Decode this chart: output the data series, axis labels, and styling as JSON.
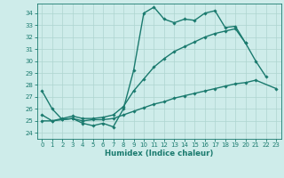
{
  "xlabel": "Humidex (Indice chaleur)",
  "x_values": [
    0,
    1,
    2,
    3,
    4,
    5,
    6,
    7,
    8,
    9,
    10,
    11,
    12,
    13,
    14,
    15,
    16,
    17,
    18,
    19,
    20,
    21,
    22,
    23
  ],
  "line1": [
    27.5,
    26.0,
    25.1,
    25.2,
    24.8,
    24.6,
    24.8,
    24.5,
    26.0,
    29.2,
    34.0,
    34.5,
    33.5,
    33.2,
    33.5,
    33.4,
    34.0,
    34.2,
    32.8,
    32.9,
    31.5,
    30.0,
    28.7,
    null
  ],
  "line2": [
    25.5,
    25.0,
    25.2,
    25.4,
    25.2,
    25.2,
    25.3,
    25.5,
    26.2,
    27.5,
    28.5,
    29.5,
    30.2,
    30.8,
    31.2,
    31.6,
    32.0,
    32.3,
    32.5,
    32.7,
    31.5,
    null,
    null,
    null
  ],
  "line3": [
    25.0,
    25.0,
    25.1,
    25.2,
    25.0,
    25.1,
    25.1,
    25.2,
    25.5,
    25.8,
    26.1,
    26.4,
    26.6,
    26.9,
    27.1,
    27.3,
    27.5,
    27.7,
    27.9,
    28.1,
    28.2,
    28.4,
    null,
    27.7
  ],
  "ylim": [
    23.5,
    34.8
  ],
  "xlim": [
    -0.5,
    23.5
  ],
  "yticks": [
    24,
    25,
    26,
    27,
    28,
    29,
    30,
    31,
    32,
    33,
    34
  ],
  "xticks": [
    0,
    1,
    2,
    3,
    4,
    5,
    6,
    7,
    8,
    9,
    10,
    11,
    12,
    13,
    14,
    15,
    16,
    17,
    18,
    19,
    20,
    21,
    22,
    23
  ],
  "line_color": "#1a7a6e",
  "bg_color": "#ceecea",
  "grid_color": "#aed4d0",
  "marker": "D",
  "marker_size": 1.8,
  "line_width": 1.0,
  "tick_fontsize": 5.0,
  "xlabel_fontsize": 6.2
}
